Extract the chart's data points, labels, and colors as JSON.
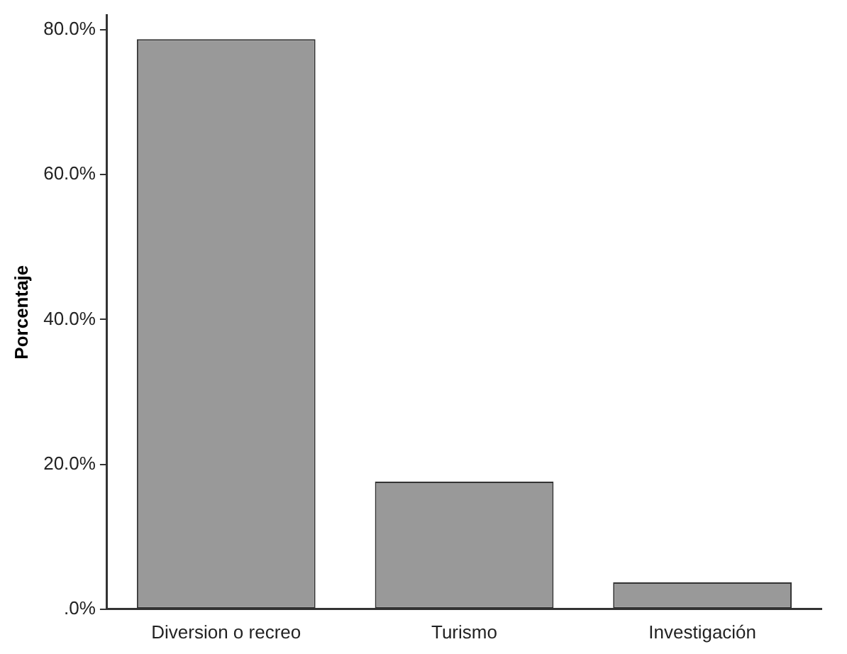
{
  "chart_data": {
    "type": "bar",
    "ylabel": "Porcentaje",
    "categories": [
      "Diversion o recreo",
      "Turismo",
      "Investigación"
    ],
    "values": [
      78.7,
      17.6,
      3.7
    ],
    "color": "#999999",
    "ylim": [
      0,
      82
    ],
    "yticks": [
      {
        "value": 0,
        "label": ".0%"
      },
      {
        "value": 20,
        "label": "20.0%"
      },
      {
        "value": 40,
        "label": "40.0%"
      },
      {
        "value": 60,
        "label": "60.0%"
      },
      {
        "value": 80,
        "label": "80.0%"
      }
    ],
    "grid": false
  }
}
